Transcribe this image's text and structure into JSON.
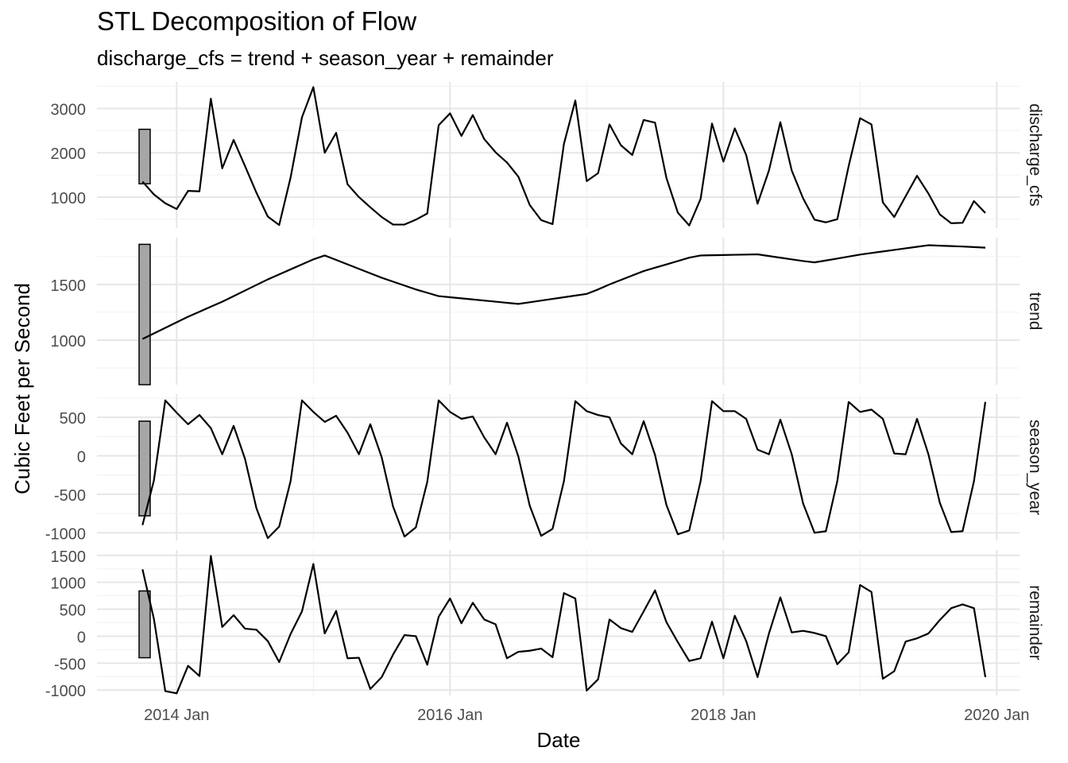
{
  "chart_data": {
    "type": "line",
    "title": "STL Decomposition of Flow",
    "subtitle": "discharge_cfs = trend + season_year + remainder",
    "xlabel": "Date",
    "ylabel": "Cubic Feet per Second",
    "x_ticks": [
      {
        "label": "2014 Jan",
        "value": "2014-01"
      },
      {
        "label": "2016 Jan",
        "value": "2016-01"
      },
      {
        "label": "2018 Jan",
        "value": "2018-01"
      },
      {
        "label": "2020 Jan",
        "value": "2020-01"
      }
    ],
    "xlim": [
      "2013-06",
      "2020-03"
    ],
    "dates": [
      "2013-10",
      "2013-11",
      "2013-12",
      "2014-01",
      "2014-02",
      "2014-03",
      "2014-04",
      "2014-05",
      "2014-06",
      "2014-07",
      "2014-08",
      "2014-09",
      "2014-10",
      "2014-11",
      "2014-12",
      "2015-01",
      "2015-02",
      "2015-03",
      "2015-04",
      "2015-05",
      "2015-06",
      "2015-07",
      "2015-08",
      "2015-09",
      "2015-10",
      "2015-11",
      "2015-12",
      "2016-01",
      "2016-02",
      "2016-03",
      "2016-04",
      "2016-05",
      "2016-06",
      "2016-07",
      "2016-08",
      "2016-09",
      "2016-10",
      "2016-11",
      "2016-12",
      "2017-01",
      "2017-02",
      "2017-03",
      "2017-04",
      "2017-05",
      "2017-06",
      "2017-07",
      "2017-08",
      "2017-09",
      "2017-10",
      "2017-11",
      "2017-12",
      "2018-01",
      "2018-02",
      "2018-03",
      "2018-04",
      "2018-05",
      "2018-06",
      "2018-07",
      "2018-08",
      "2018-09",
      "2018-10",
      "2018-11",
      "2018-12",
      "2019-01",
      "2019-02",
      "2019-03",
      "2019-04",
      "2019-05",
      "2019-06",
      "2019-07",
      "2019-08",
      "2019-09",
      "2019-10",
      "2019-11",
      "2019-12"
    ],
    "grid": true,
    "facets": [
      {
        "strip": "discharge_cfs",
        "ylim": [
          300,
          3600
        ],
        "y_ticks": [
          1000,
          2000,
          3000
        ],
        "scale_bar": [
          1300,
          2530
        ],
        "values": [
          1350,
          1060,
          860,
          730,
          1140,
          1130,
          3220,
          1650,
          2290,
          1700,
          1100,
          560,
          370,
          1440,
          2800,
          3480,
          2000,
          2450,
          1290,
          1000,
          770,
          550,
          380,
          380,
          490,
          630,
          2620,
          2890,
          2380,
          2850,
          2310,
          2010,
          1780,
          1460,
          820,
          480,
          390,
          2200,
          3180,
          1360,
          1540,
          2640,
          2170,
          1950,
          2740,
          2680,
          1430,
          650,
          360,
          960,
          2660,
          1800,
          2550,
          1950,
          850,
          1600,
          2690,
          1600,
          970,
          490,
          430,
          500,
          1700,
          2780,
          2640,
          880,
          550,
          1020,
          1480,
          1080,
          610,
          410,
          420,
          910,
          640,
          660
        ]
      },
      {
        "strip": "trend",
        "ylim": [
          600,
          1920
        ],
        "y_ticks": [
          1000,
          1500
        ],
        "scale_bar": [
          600,
          1860
        ],
        "values": [
          1010,
          1060,
          1110,
          1160,
          1210,
          1255,
          1300,
          1345,
          1395,
          1445,
          1495,
          1545,
          1590,
          1635,
          1680,
          1725,
          1760,
          1720,
          1680,
          1640,
          1600,
          1560,
          1525,
          1490,
          1455,
          1425,
          1395,
          1385,
          1375,
          1365,
          1355,
          1345,
          1335,
          1325,
          1340,
          1355,
          1370,
          1385,
          1400,
          1415,
          1455,
          1500,
          1540,
          1580,
          1620,
          1650,
          1680,
          1710,
          1740,
          1760,
          1762,
          1764,
          1766,
          1768,
          1770,
          1755,
          1740,
          1725,
          1710,
          1698,
          1715,
          1732,
          1750,
          1768,
          1782,
          1796,
          1810,
          1824,
          1838,
          1852,
          1848,
          1844,
          1840,
          1835,
          1830
        ]
      },
      {
        "strip": "season_year",
        "ylim": [
          -1100,
          800
        ],
        "y_ticks": [
          -1000,
          -500,
          0,
          500
        ],
        "scale_bar": [
          -780,
          450
        ],
        "values": [
          -900,
          -320,
          720,
          560,
          410,
          530,
          360,
          20,
          390,
          -40,
          -680,
          -1070,
          -920,
          -330,
          720,
          570,
          440,
          520,
          300,
          20,
          410,
          -20,
          -660,
          -1050,
          -930,
          -340,
          720,
          570,
          480,
          510,
          240,
          20,
          430,
          -10,
          -650,
          -1040,
          -950,
          -330,
          710,
          580,
          530,
          500,
          160,
          20,
          450,
          10,
          -640,
          -1020,
          -970,
          -330,
          710,
          580,
          580,
          480,
          80,
          20,
          470,
          20,
          -620,
          -1000,
          -980,
          -330,
          700,
          570,
          600,
          480,
          30,
          20,
          480,
          20,
          -610,
          -990,
          -980,
          -330,
          700
        ]
      },
      {
        "strip": "remainder",
        "ylim": [
          -1100,
          1600
        ],
        "y_ticks": [
          -1000,
          -500,
          0,
          500,
          1000,
          1500
        ],
        "scale_bar": [
          -400,
          840
        ],
        "values": [
          1240,
          320,
          -1020,
          -1060,
          -550,
          -740,
          1490,
          170,
          390,
          140,
          120,
          -90,
          -480,
          40,
          460,
          1340,
          50,
          470,
          -410,
          -400,
          -980,
          -760,
          -340,
          20,
          0,
          -530,
          360,
          700,
          240,
          620,
          310,
          220,
          -410,
          -290,
          -270,
          -230,
          -390,
          800,
          700,
          -1010,
          -800,
          310,
          150,
          80,
          460,
          850,
          260,
          -110,
          -460,
          -410,
          270,
          -410,
          380,
          -90,
          -760,
          50,
          720,
          70,
          100,
          60,
          0,
          -520,
          -300,
          950,
          820,
          -790,
          -650,
          -100,
          -40,
          50,
          300,
          520,
          590,
          520,
          -760
        ]
      }
    ]
  }
}
